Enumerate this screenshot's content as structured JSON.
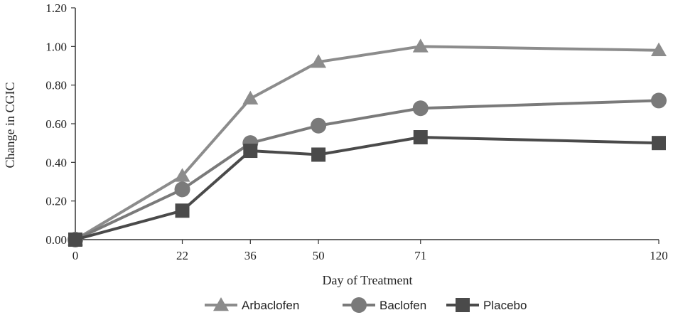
{
  "chart_data": {
    "type": "line",
    "xlabel": "Day of Treatment",
    "ylabel": "Change in CGIC",
    "x": [
      0,
      22,
      36,
      50,
      71,
      120
    ],
    "x_tick_labels": [
      "0",
      "22",
      "36",
      "50",
      "71",
      "120"
    ],
    "y_tick_labels": [
      "0.00",
      "0.20",
      "0.40",
      "0.60",
      "0.80",
      "1.00",
      "1.20"
    ],
    "ylim": [
      0,
      1.2
    ],
    "grid": false,
    "legend_position": "bottom",
    "series": [
      {
        "name": "Arbaclofen",
        "marker": "triangle",
        "color": "#8c8c8c",
        "values": [
          0.0,
          0.33,
          0.73,
          0.92,
          1.0,
          0.98
        ]
      },
      {
        "name": "Baclofen",
        "marker": "circle",
        "color": "#7a7a7a",
        "values": [
          0.0,
          0.26,
          0.5,
          0.59,
          0.68,
          0.72
        ]
      },
      {
        "name": "Placebo",
        "marker": "square",
        "color": "#4a4a4a",
        "values": [
          0.0,
          0.15,
          0.46,
          0.44,
          0.53,
          0.5
        ]
      }
    ]
  }
}
